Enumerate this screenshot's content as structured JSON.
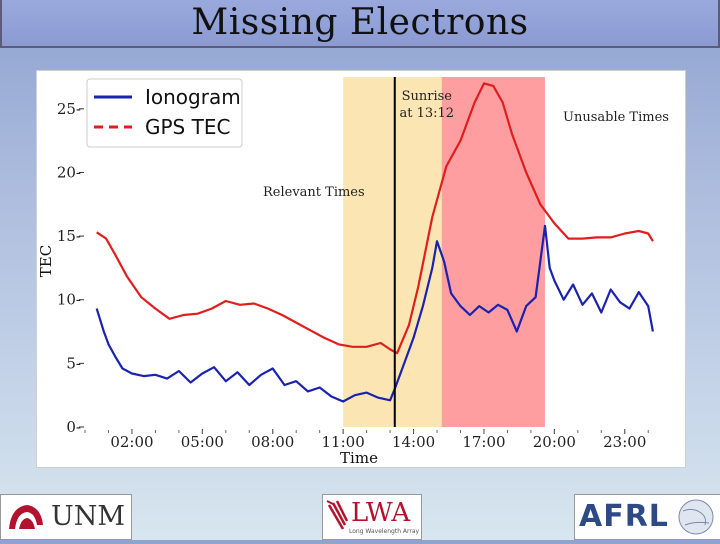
{
  "slide": {
    "title": "Missing Electrons",
    "logos": {
      "unm": "UNM",
      "lwa": "LWA",
      "lwa_sub": "Long Wavelength Array",
      "afrl": "AFRL"
    }
  },
  "colors": {
    "ionogram": "#1a22b0",
    "gps": "#e01e1e",
    "relevant_band": "#fbe6b3",
    "unusable_band": "#ff9ea0",
    "sunrise_line": "#000000"
  },
  "chart_data": {
    "type": "line",
    "title": "",
    "xlabel": "Time",
    "ylabel": "TEC",
    "xlim": [
      0,
      24.8
    ],
    "ylim": [
      0,
      27.5
    ],
    "x_ticks": [
      2,
      5,
      8,
      11,
      14,
      17,
      20,
      23
    ],
    "x_tick_labels": [
      "02:00",
      "05:00",
      "08:00",
      "11:00",
      "14:00",
      "17:00",
      "20:00",
      "23:00"
    ],
    "y_ticks": [
      0,
      5,
      10,
      15,
      20,
      25
    ],
    "y_tick_labels": [
      "0",
      "5",
      "10",
      "15",
      "20",
      "25"
    ],
    "legend": {
      "placement": "top-left",
      "entries": [
        "Ionogram",
        "GPS TEC"
      ]
    },
    "annotations": {
      "sunrise": "Sunrise\nat 13:12",
      "relevant": "Relevant Times",
      "unusable": "Unusable Times"
    },
    "sunrise_x": 13.2,
    "bands": [
      {
        "name": "relevant",
        "x0": 11.0,
        "x1": 15.2
      },
      {
        "name": "unusable",
        "x0": 15.2,
        "x1": 19.6
      }
    ],
    "series": [
      {
        "name": "Ionogram",
        "style": "solid",
        "x": [
          0.5,
          0.8,
          1.0,
          1.3,
          1.6,
          2.0,
          2.5,
          3.0,
          3.5,
          4.0,
          4.5,
          5.0,
          5.5,
          6.0,
          6.5,
          7.0,
          7.5,
          8.0,
          8.5,
          9.0,
          9.5,
          10.0,
          10.5,
          11.0,
          11.5,
          12.0,
          12.5,
          13.0,
          13.2,
          13.6,
          14.0,
          14.4,
          14.8,
          15.0,
          15.3,
          15.6,
          16.0,
          16.4,
          16.8,
          17.2,
          17.6,
          18.0,
          18.4,
          18.8,
          19.2,
          19.4,
          19.6,
          19.8,
          20.0,
          20.4,
          20.8,
          21.2,
          21.6,
          22.0,
          22.4,
          22.8,
          23.2,
          23.6,
          24.0,
          24.2
        ],
        "y": [
          9.3,
          7.5,
          6.5,
          5.5,
          4.6,
          4.2,
          4.0,
          4.1,
          3.8,
          4.4,
          3.5,
          4.2,
          4.7,
          3.6,
          4.3,
          3.3,
          4.1,
          4.6,
          3.3,
          3.6,
          2.8,
          3.1,
          2.4,
          2.0,
          2.5,
          2.7,
          2.3,
          2.1,
          3.0,
          5.0,
          7.0,
          9.5,
          12.5,
          14.6,
          13.0,
          10.5,
          9.5,
          8.8,
          9.5,
          9.0,
          9.6,
          9.2,
          7.5,
          9.5,
          10.2,
          13.0,
          15.8,
          12.5,
          11.5,
          10.0,
          11.2,
          9.6,
          10.5,
          9.0,
          10.8,
          9.8,
          9.3,
          10.6,
          9.5,
          7.5
        ]
      },
      {
        "name": "GPS TEC",
        "style": "dashed",
        "x": [
          0.5,
          0.9,
          1.3,
          1.8,
          2.4,
          3.0,
          3.6,
          4.2,
          4.8,
          5.4,
          6.0,
          6.6,
          7.2,
          7.8,
          8.4,
          9.0,
          9.6,
          10.2,
          10.8,
          11.4,
          12.0,
          12.6,
          13.0,
          13.3,
          13.8,
          14.2,
          14.8,
          15.4,
          16.0,
          16.6,
          17.0,
          17.4,
          17.8,
          18.2,
          18.8,
          19.4,
          20.0,
          20.6,
          21.2,
          21.8,
          22.4,
          23.0,
          23.6,
          24.0,
          24.2
        ],
        "y": [
          15.3,
          14.8,
          13.5,
          11.8,
          10.2,
          9.3,
          8.5,
          8.8,
          8.9,
          9.3,
          9.9,
          9.6,
          9.7,
          9.3,
          8.8,
          8.2,
          7.6,
          7.0,
          6.5,
          6.3,
          6.3,
          6.6,
          6.1,
          5.8,
          8.0,
          11.0,
          16.5,
          20.5,
          22.5,
          25.5,
          27.0,
          26.8,
          25.5,
          23.0,
          20.0,
          17.5,
          16.0,
          14.8,
          14.8,
          14.9,
          14.9,
          15.2,
          15.4,
          15.2,
          14.6
        ]
      }
    ]
  }
}
